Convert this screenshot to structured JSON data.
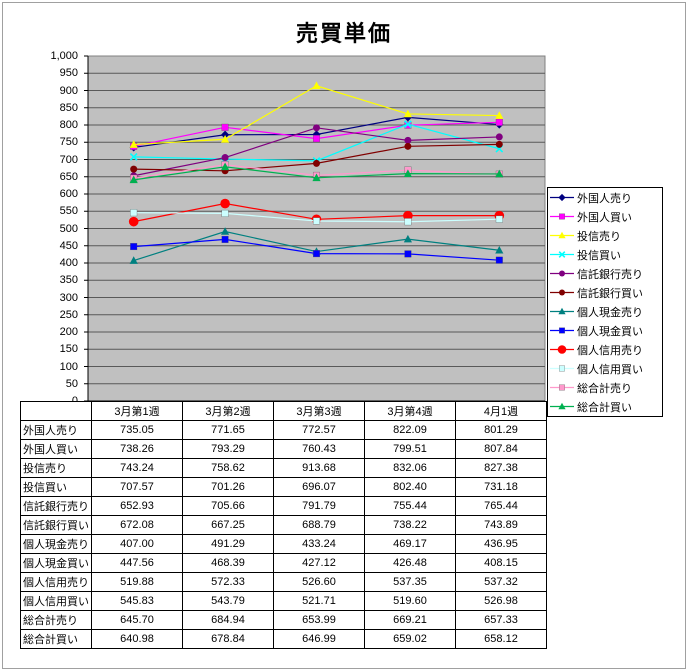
{
  "title": "売買単価",
  "chart_data": {
    "type": "line",
    "categories": [
      "3月第1週",
      "3月第2週",
      "3月第3週",
      "3月第4週",
      "4月1週"
    ],
    "ylim": [
      0,
      1000
    ],
    "ytick_step": 50,
    "grid": true,
    "plot_bg": "#C0C0C0",
    "legend_position": "right",
    "series": [
      {
        "name": "外国人売り",
        "color": "#000080",
        "marker": "diamond",
        "values": [
          735.05,
          771.65,
          772.57,
          822.09,
          801.29
        ]
      },
      {
        "name": "外国人買い",
        "color": "#FF00FF",
        "marker": "square",
        "values": [
          738.26,
          793.29,
          760.43,
          799.51,
          807.84
        ]
      },
      {
        "name": "投信売り",
        "color": "#FFFF00",
        "marker": "triangle",
        "values": [
          743.24,
          758.62,
          913.68,
          832.06,
          827.38
        ]
      },
      {
        "name": "投信買い",
        "color": "#00FFFF",
        "marker": "x",
        "values": [
          707.57,
          701.26,
          696.07,
          802.4,
          731.18
        ]
      },
      {
        "name": "信託銀行売り",
        "color": "#800080",
        "marker": "circle",
        "values": [
          652.93,
          705.66,
          791.79,
          755.44,
          765.44
        ]
      },
      {
        "name": "信託銀行買い",
        "color": "#800000",
        "marker": "circle",
        "values": [
          672.08,
          667.25,
          688.79,
          738.22,
          743.89
        ]
      },
      {
        "name": "個人現金売り",
        "color": "#008080",
        "marker": "triangle",
        "values": [
          407.0,
          491.29,
          433.24,
          469.17,
          436.95
        ]
      },
      {
        "name": "個人現金買い",
        "color": "#0000FF",
        "marker": "square",
        "values": [
          447.56,
          468.39,
          427.12,
          426.48,
          408.15
        ]
      },
      {
        "name": "個人信用売り",
        "color": "#FF0000",
        "marker": "circle-large",
        "values": [
          519.88,
          572.33,
          526.6,
          537.35,
          537.32
        ]
      },
      {
        "name": "個人信用買い",
        "color": "#CCFFFF",
        "marker": "square",
        "values": [
          545.83,
          543.79,
          521.71,
          519.6,
          526.98
        ]
      },
      {
        "name": "総合計売り",
        "color": "#FF99CC",
        "marker": "square",
        "values": [
          645.7,
          684.94,
          653.99,
          669.21,
          657.33
        ]
      },
      {
        "name": "総合計買い",
        "color": "#00B050",
        "marker": "triangle",
        "values": [
          640.98,
          678.84,
          646.99,
          659.02,
          658.12
        ]
      }
    ]
  }
}
